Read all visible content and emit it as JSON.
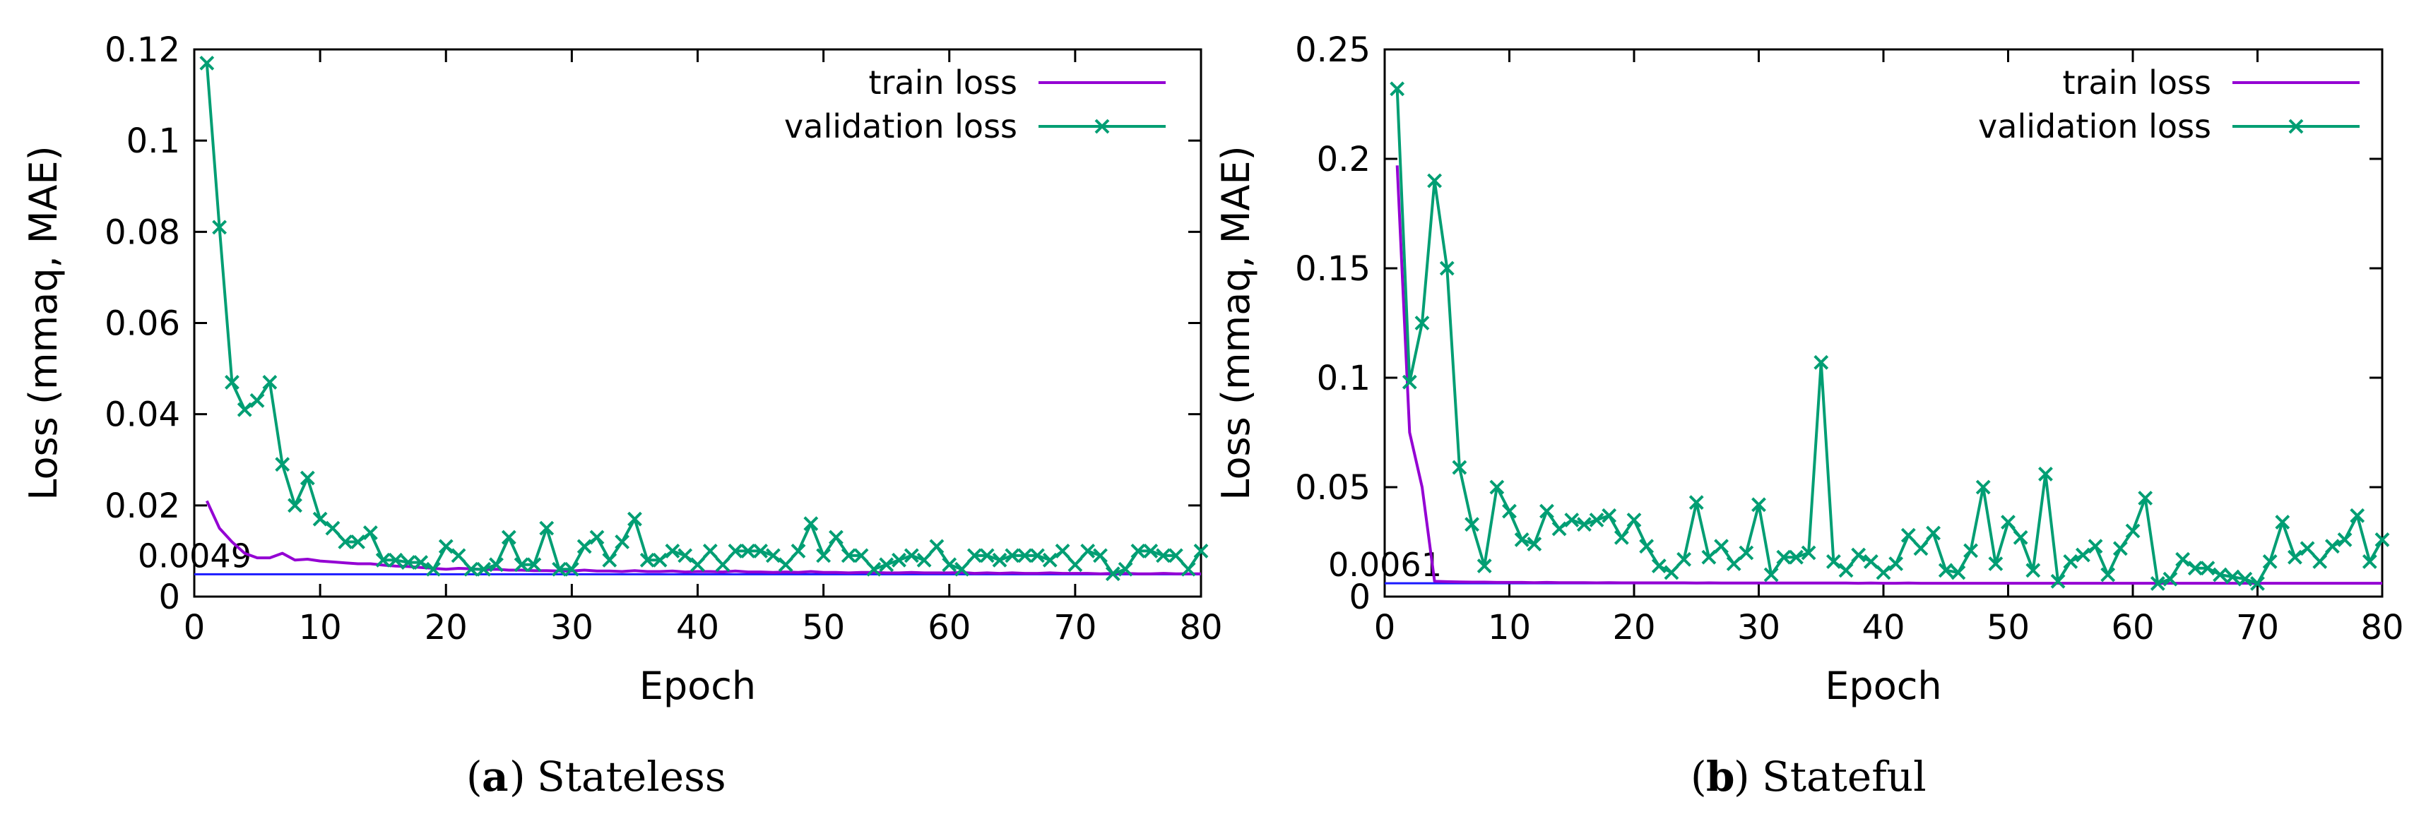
{
  "chart_data": [
    {
      "type": "line",
      "panel_label": "a",
      "caption": "Stateless",
      "xlabel": "Epoch",
      "ylabel": "Loss (mmaq, MAE)",
      "xlim": [
        0,
        80
      ],
      "ylim": [
        0,
        0.12
      ],
      "xticks": [
        "0",
        "10",
        "20",
        "30",
        "40",
        "50",
        "60",
        "70",
        "80"
      ],
      "yticks": [
        "0",
        "0.02",
        "0.04",
        "0.06",
        "0.08",
        "0.1",
        "0.12"
      ],
      "legend_position": "top-right",
      "reference_line": {
        "value": 0.0049,
        "label": "0.0049",
        "color": "#1a1aff"
      },
      "series": [
        {
          "name": "train loss",
          "color": "#9400d3",
          "marker": "none",
          "x": [
            1,
            2,
            3,
            4,
            5,
            6,
            7,
            8,
            9,
            10,
            11,
            12,
            13,
            14,
            15,
            16,
            17,
            18,
            19,
            20,
            21,
            22,
            23,
            24,
            25,
            26,
            27,
            28,
            29,
            30,
            31,
            32,
            33,
            34,
            35,
            36,
            37,
            38,
            39,
            40,
            41,
            42,
            43,
            44,
            45,
            46,
            47,
            48,
            49,
            50,
            51,
            52,
            53,
            54,
            55,
            56,
            57,
            58,
            59,
            60,
            61,
            62,
            63,
            64,
            65,
            66,
            67,
            68,
            69,
            70,
            71,
            72,
            73,
            74,
            75,
            76,
            77,
            78,
            79,
            80
          ],
          "y": [
            0.021,
            0.015,
            0.012,
            0.0095,
            0.0085,
            0.0085,
            0.0095,
            0.008,
            0.0082,
            0.0078,
            0.0076,
            0.0074,
            0.0072,
            0.0072,
            0.0069,
            0.0067,
            0.0066,
            0.0064,
            0.0062,
            0.006,
            0.0062,
            0.0061,
            0.0059,
            0.006,
            0.0058,
            0.0058,
            0.0057,
            0.0057,
            0.0056,
            0.0056,
            0.0058,
            0.0056,
            0.0056,
            0.0055,
            0.0057,
            0.0055,
            0.0055,
            0.0056,
            0.0054,
            0.0055,
            0.0055,
            0.0054,
            0.0056,
            0.0054,
            0.0054,
            0.0053,
            0.0054,
            0.0053,
            0.0055,
            0.0053,
            0.0053,
            0.0052,
            0.0053,
            0.0053,
            0.0052,
            0.0052,
            0.0053,
            0.0052,
            0.0052,
            0.0052,
            0.0053,
            0.0051,
            0.0052,
            0.0051,
            0.0052,
            0.0051,
            0.0051,
            0.0052,
            0.0051,
            0.0051,
            0.0051,
            0.005,
            0.0051,
            0.0051,
            0.005,
            0.005,
            0.0051,
            0.005,
            0.005,
            0.005
          ]
        },
        {
          "name": "validation loss",
          "color": "#009e73",
          "marker": "x",
          "x": [
            1,
            2,
            3,
            4,
            5,
            6,
            7,
            8,
            9,
            10,
            11,
            12,
            13,
            14,
            15,
            16,
            17,
            18,
            19,
            20,
            21,
            22,
            23,
            24,
            25,
            26,
            27,
            28,
            29,
            30,
            31,
            32,
            33,
            34,
            35,
            36,
            37,
            38,
            39,
            40,
            41,
            42,
            43,
            44,
            45,
            46,
            47,
            48,
            49,
            50,
            51,
            52,
            53,
            54,
            55,
            56,
            57,
            58,
            59,
            60,
            61,
            62,
            63,
            64,
            65,
            66,
            67,
            68,
            69,
            70,
            71,
            72,
            73,
            74,
            75,
            76,
            77,
            78,
            79,
            80
          ],
          "y": [
            0.117,
            0.081,
            0.047,
            0.041,
            0.043,
            0.047,
            0.029,
            0.02,
            0.026,
            0.017,
            0.015,
            0.012,
            0.012,
            0.014,
            0.008,
            0.008,
            0.0075,
            0.0075,
            0.006,
            0.011,
            0.009,
            0.006,
            0.006,
            0.007,
            0.013,
            0.007,
            0.007,
            0.015,
            0.006,
            0.006,
            0.011,
            0.013,
            0.008,
            0.012,
            0.017,
            0.008,
            0.008,
            0.01,
            0.009,
            0.007,
            0.01,
            0.007,
            0.01,
            0.01,
            0.01,
            0.009,
            0.007,
            0.01,
            0.016,
            0.009,
            0.013,
            0.009,
            0.009,
            0.006,
            0.007,
            0.008,
            0.009,
            0.008,
            0.011,
            0.007,
            0.006,
            0.009,
            0.009,
            0.008,
            0.009,
            0.009,
            0.009,
            0.008,
            0.01,
            0.007,
            0.01,
            0.009,
            0.005,
            0.006,
            0.01,
            0.01,
            0.009,
            0.009,
            0.006,
            0.01
          ]
        }
      ]
    },
    {
      "type": "line",
      "panel_label": "b",
      "caption": "Stateful",
      "xlabel": "Epoch",
      "ylabel": "Loss (mmaq, MAE)",
      "xlim": [
        0,
        80
      ],
      "ylim": [
        0,
        0.25
      ],
      "xticks": [
        "0",
        "10",
        "20",
        "30",
        "40",
        "50",
        "60",
        "70",
        "80"
      ],
      "yticks": [
        "0",
        "0.05",
        "0.1",
        "0.15",
        "0.2",
        "0.25"
      ],
      "legend_position": "top-right",
      "reference_line": {
        "value": 0.0061,
        "label": "0.0061",
        "color": "#1a1aff"
      },
      "series": [
        {
          "name": "train loss",
          "color": "#9400d3",
          "marker": "none",
          "x": [
            1,
            2,
            3,
            4,
            5,
            6,
            7,
            8,
            9,
            10,
            11,
            12,
            13,
            14,
            15,
            16,
            17,
            18,
            19,
            20,
            21,
            22,
            23,
            24,
            25,
            26,
            27,
            28,
            29,
            30,
            31,
            32,
            33,
            34,
            35,
            36,
            37,
            38,
            39,
            40,
            41,
            42,
            43,
            44,
            45,
            46,
            47,
            48,
            49,
            50,
            51,
            52,
            53,
            54,
            55,
            56,
            57,
            58,
            59,
            60,
            61,
            62,
            63,
            64,
            65,
            66,
            67,
            68,
            69,
            70,
            71,
            72,
            73,
            74,
            75,
            76,
            77,
            78,
            79,
            80
          ],
          "y": [
            0.197,
            0.075,
            0.05,
            0.007,
            0.0068,
            0.0067,
            0.0066,
            0.0066,
            0.0065,
            0.0065,
            0.0065,
            0.0064,
            0.0065,
            0.0064,
            0.0064,
            0.0064,
            0.0063,
            0.0064,
            0.0063,
            0.0063,
            0.0063,
            0.0063,
            0.0063,
            0.0063,
            0.0062,
            0.0063,
            0.0062,
            0.0062,
            0.0062,
            0.0062,
            0.0062,
            0.0062,
            0.0062,
            0.0062,
            0.0062,
            0.0062,
            0.0062,
            0.0061,
            0.0062,
            0.0061,
            0.0061,
            0.0062,
            0.0061,
            0.0061,
            0.0061,
            0.0061,
            0.0061,
            0.0061,
            0.0061,
            0.0061,
            0.0061,
            0.0061,
            0.0061,
            0.0061,
            0.0061,
            0.0061,
            0.0061,
            0.0061,
            0.0061,
            0.0061,
            0.0061,
            0.0061,
            0.0061,
            0.0061,
            0.0061,
            0.0061,
            0.0061,
            0.0061,
            0.0061,
            0.0061,
            0.0061,
            0.0061,
            0.0061,
            0.0061,
            0.0061,
            0.0061,
            0.0061,
            0.0061,
            0.0061,
            0.0061
          ]
        },
        {
          "name": "validation loss",
          "color": "#009e73",
          "marker": "x",
          "x": [
            1,
            2,
            3,
            4,
            5,
            6,
            7,
            8,
            9,
            10,
            11,
            12,
            13,
            14,
            15,
            16,
            17,
            18,
            19,
            20,
            21,
            22,
            23,
            24,
            25,
            26,
            27,
            28,
            29,
            30,
            31,
            32,
            33,
            34,
            35,
            36,
            37,
            38,
            39,
            40,
            41,
            42,
            43,
            44,
            45,
            46,
            47,
            48,
            49,
            50,
            51,
            52,
            53,
            54,
            55,
            56,
            57,
            58,
            59,
            60,
            61,
            62,
            63,
            64,
            65,
            66,
            67,
            68,
            69,
            70,
            71,
            72,
            73,
            74,
            75,
            76,
            77,
            78,
            79,
            80
          ],
          "y": [
            0.232,
            0.098,
            0.125,
            0.19,
            0.15,
            0.059,
            0.033,
            0.014,
            0.05,
            0.039,
            0.026,
            0.024,
            0.039,
            0.031,
            0.035,
            0.033,
            0.035,
            0.037,
            0.027,
            0.035,
            0.023,
            0.014,
            0.011,
            0.017,
            0.043,
            0.018,
            0.023,
            0.015,
            0.02,
            0.042,
            0.01,
            0.018,
            0.018,
            0.02,
            0.107,
            0.016,
            0.012,
            0.019,
            0.016,
            0.011,
            0.015,
            0.028,
            0.022,
            0.029,
            0.012,
            0.011,
            0.021,
            0.05,
            0.015,
            0.034,
            0.027,
            0.012,
            0.056,
            0.007,
            0.016,
            0.019,
            0.023,
            0.01,
            0.022,
            0.03,
            0.045,
            0.006,
            0.008,
            0.017,
            0.013,
            0.013,
            0.01,
            0.009,
            0.008,
            0.006,
            0.016,
            0.034,
            0.018,
            0.022,
            0.016,
            0.023,
            0.026,
            0.037,
            0.016,
            0.026
          ]
        }
      ]
    }
  ]
}
